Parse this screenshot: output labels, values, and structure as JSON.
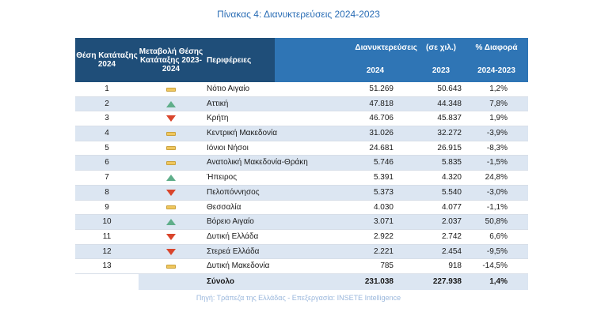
{
  "title": "Πίνακας 4: Διανυκτερεύσεις 2024-2023",
  "headers": {
    "rank": "Θέση Κατάταξης 2024",
    "change": "Μεταβολή Θέσης Κατάταξης 2023-2024",
    "region": "Περιφέρειες",
    "nights": "Διανυκτερεύσεις",
    "unit": "(σε χιλ.)",
    "pct": "% Διαφορά",
    "y2024": "2024",
    "y2023": "2023",
    "range": "2024-2023"
  },
  "rows": [
    {
      "rank": "1",
      "change": "same",
      "region": "Νότιο Αιγαίο",
      "v2024": "51.269",
      "v2023": "50.643",
      "pct": "1,2%"
    },
    {
      "rank": "2",
      "change": "up",
      "region": "Αττική",
      "v2024": "47.818",
      "v2023": "44.348",
      "pct": "7,8%"
    },
    {
      "rank": "3",
      "change": "down",
      "region": "Κρήτη",
      "v2024": "46.706",
      "v2023": "45.837",
      "pct": "1,9%"
    },
    {
      "rank": "4",
      "change": "same",
      "region": "Κεντρική Μακεδονία",
      "v2024": "31.026",
      "v2023": "32.272",
      "pct": "-3,9%"
    },
    {
      "rank": "5",
      "change": "same",
      "region": "Ιόνιοι Νήσοι",
      "v2024": "24.681",
      "v2023": "26.915",
      "pct": "-8,3%"
    },
    {
      "rank": "6",
      "change": "same",
      "region": "Ανατολική Μακεδονία-Θράκη",
      "v2024": "5.746",
      "v2023": "5.835",
      "pct": "-1,5%"
    },
    {
      "rank": "7",
      "change": "up",
      "region": "Ήπειρος",
      "v2024": "5.391",
      "v2023": "4.320",
      "pct": "24,8%"
    },
    {
      "rank": "8",
      "change": "down",
      "region": "Πελοπόννησος",
      "v2024": "5.373",
      "v2023": "5.540",
      "pct": "-3,0%"
    },
    {
      "rank": "9",
      "change": "same",
      "region": "Θεσσαλία",
      "v2024": "4.030",
      "v2023": "4.077",
      "pct": "-1,1%"
    },
    {
      "rank": "10",
      "change": "up",
      "region": "Βόρειο Αιγαίο",
      "v2024": "3.071",
      "v2023": "2.037",
      "pct": "50,8%"
    },
    {
      "rank": "11",
      "change": "down",
      "region": "Δυτική Ελλάδα",
      "v2024": "2.922",
      "v2023": "2.742",
      "pct": "6,6%"
    },
    {
      "rank": "12",
      "change": "down",
      "region": "Στερεά Ελλάδα",
      "v2024": "2.221",
      "v2023": "2.454",
      "pct": "-9,5%"
    },
    {
      "rank": "13",
      "change": "same",
      "region": "Δυτική Μακεδονία",
      "v2024": "785",
      "v2023": "918",
      "pct": "-14,5%"
    }
  ],
  "total": {
    "label": "Σύνολο",
    "v2024": "231.038",
    "v2023": "227.938",
    "pct": "1,4%"
  },
  "source": "Πηγή: Τράπεζα της Ελλάδας - Επεξεργασία: INSETE Intelligence",
  "colors": {
    "header_dark": "#1f4e79",
    "header_light": "#2f75b5",
    "stripe": "#dce6f2",
    "up": "#5fae8a",
    "down": "#d9452c",
    "same": "#f0c75e"
  }
}
